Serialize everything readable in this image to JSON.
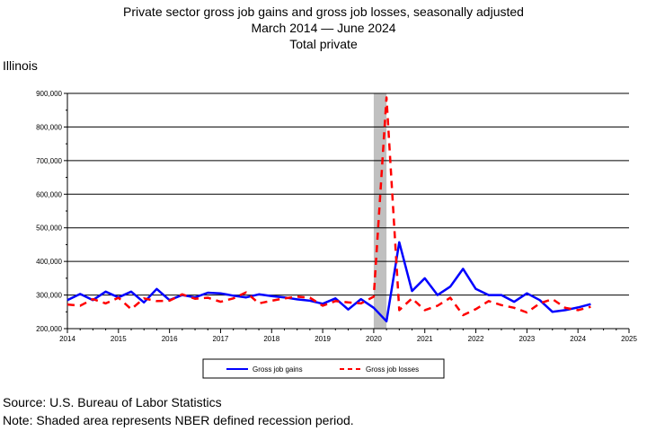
{
  "chart_data": {
    "type": "line",
    "title": "Private sector gross job gains and gross job losses, seasonally adjusted",
    "subtitle_start": "March 2014",
    "subtitle_end": "June 2024",
    "subtitle_series": "Total private",
    "region": "Illinois",
    "xlim": [
      2014,
      2025
    ],
    "ylim": [
      200000,
      900000
    ],
    "x_ticks": [
      "2014",
      "2015",
      "2016",
      "2017",
      "2018",
      "2019",
      "2020",
      "2021",
      "2022",
      "2023",
      "2024",
      "2025"
    ],
    "y_ticks": [
      "200,000",
      "300,000",
      "400,000",
      "500,000",
      "600,000",
      "700,000",
      "800,000",
      "900,000"
    ],
    "grid": "horizontal",
    "legend_position": "bottom",
    "recession": [
      2020.0,
      2020.25
    ],
    "x": [
      2014.0,
      2014.25,
      2014.5,
      2014.75,
      2015.0,
      2015.25,
      2015.5,
      2015.75,
      2016.0,
      2016.25,
      2016.5,
      2016.75,
      2017.0,
      2017.25,
      2017.5,
      2017.75,
      2018.0,
      2018.25,
      2018.5,
      2018.75,
      2019.0,
      2019.25,
      2019.5,
      2019.75,
      2020.0,
      2020.25,
      2020.5,
      2020.75,
      2021.0,
      2021.25,
      2021.5,
      2021.75,
      2022.0,
      2022.25,
      2022.5,
      2022.75,
      2023.0,
      2023.25,
      2023.5,
      2023.75,
      2024.0,
      2024.25
    ],
    "series": [
      {
        "name": "Gross job gains",
        "color": "#0000ff",
        "dash": "solid",
        "values": [
          285000,
          303000,
          285000,
          310000,
          293000,
          310000,
          278000,
          318000,
          285000,
          300000,
          293000,
          307000,
          305000,
          298000,
          293000,
          302000,
          297000,
          293000,
          287000,
          283000,
          274000,
          290000,
          257000,
          288000,
          262000,
          222000,
          457000,
          312000,
          350000,
          300000,
          325000,
          378000,
          318000,
          300000,
          300000,
          280000,
          305000,
          285000,
          250000,
          255000,
          263000,
          273000
        ]
      },
      {
        "name": "Gross job losses",
        "color": "#ff0000",
        "dash": "dashed",
        "values": [
          272000,
          268000,
          288000,
          275000,
          292000,
          258000,
          290000,
          282000,
          283000,
          302000,
          289000,
          292000,
          280000,
          290000,
          308000,
          275000,
          283000,
          290000,
          295000,
          292000,
          268000,
          282000,
          278000,
          275000,
          295000,
          888000,
          255000,
          290000,
          255000,
          268000,
          292000,
          240000,
          258000,
          282000,
          270000,
          262000,
          248000,
          275000,
          288000,
          262000,
          255000,
          265000
        ]
      }
    ]
  },
  "footer": {
    "source": "Source: U.S. Bureau of Labor Statistics",
    "note": "Note: Shaded area represents NBER defined recession period."
  }
}
